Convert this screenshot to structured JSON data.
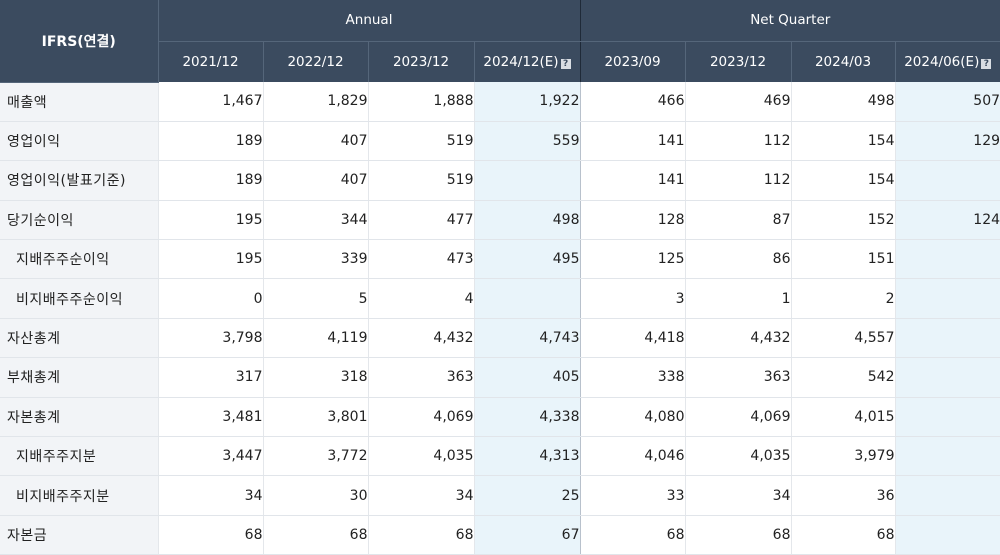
{
  "table": {
    "corner_label": "IFRS(연결)",
    "annual_label": "Annual",
    "quarter_label": "Net Quarter",
    "estimate_icon": "?",
    "periods": [
      {
        "label": "2021/12",
        "estimate": false
      },
      {
        "label": "2022/12",
        "estimate": false
      },
      {
        "label": "2023/12",
        "estimate": false
      },
      {
        "label": "2024/12(E)",
        "estimate": true
      },
      {
        "label": "2023/09",
        "estimate": false
      },
      {
        "label": "2023/12",
        "estimate": false
      },
      {
        "label": "2024/03",
        "estimate": false
      },
      {
        "label": "2024/06(E)",
        "estimate": true
      }
    ],
    "rows": [
      {
        "label": "매출액",
        "sub": false,
        "values": [
          "1,467",
          "1,829",
          "1,888",
          "1,922",
          "466",
          "469",
          "498",
          "507"
        ]
      },
      {
        "label": "영업이익",
        "sub": false,
        "values": [
          "189",
          "407",
          "519",
          "559",
          "141",
          "112",
          "154",
          "129"
        ]
      },
      {
        "label": "영업이익(발표기준)",
        "sub": false,
        "values": [
          "189",
          "407",
          "519",
          "",
          "141",
          "112",
          "154",
          ""
        ]
      },
      {
        "label": "당기순이익",
        "sub": false,
        "values": [
          "195",
          "344",
          "477",
          "498",
          "128",
          "87",
          "152",
          "124"
        ]
      },
      {
        "label": "지배주주순이익",
        "sub": true,
        "values": [
          "195",
          "339",
          "473",
          "495",
          "125",
          "86",
          "151",
          ""
        ]
      },
      {
        "label": "비지배주주순이익",
        "sub": true,
        "values": [
          "0",
          "5",
          "4",
          "",
          "3",
          "1",
          "2",
          ""
        ]
      },
      {
        "label": "자산총계",
        "sub": false,
        "values": [
          "3,798",
          "4,119",
          "4,432",
          "4,743",
          "4,418",
          "4,432",
          "4,557",
          ""
        ]
      },
      {
        "label": "부채총계",
        "sub": false,
        "values": [
          "317",
          "318",
          "363",
          "405",
          "338",
          "363",
          "542",
          ""
        ]
      },
      {
        "label": "자본총계",
        "sub": false,
        "values": [
          "3,481",
          "3,801",
          "4,069",
          "4,338",
          "4,080",
          "4,069",
          "4,015",
          ""
        ]
      },
      {
        "label": "지배주주지분",
        "sub": true,
        "values": [
          "3,447",
          "3,772",
          "4,035",
          "4,313",
          "4,046",
          "4,035",
          "3,979",
          ""
        ]
      },
      {
        "label": "비지배주주지분",
        "sub": true,
        "values": [
          "34",
          "30",
          "34",
          "25",
          "33",
          "34",
          "36",
          ""
        ]
      },
      {
        "label": "자본금",
        "sub": false,
        "values": [
          "68",
          "68",
          "68",
          "67",
          "68",
          "68",
          "68",
          ""
        ]
      }
    ]
  }
}
